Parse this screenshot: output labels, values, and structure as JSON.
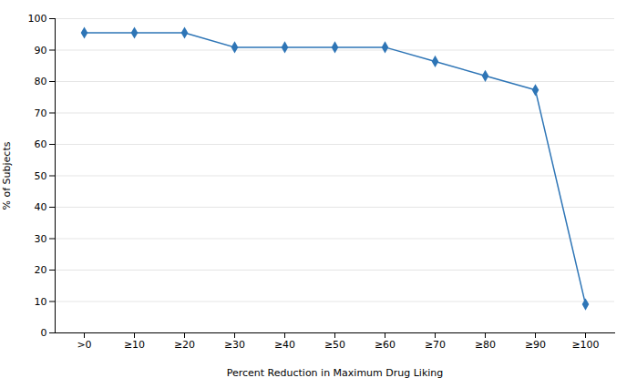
{
  "chart_data": {
    "type": "line",
    "categories": [
      ">0",
      "≥10",
      "≥20",
      "≥30",
      "≥40",
      "≥50",
      "≥60",
      "≥70",
      "≥80",
      "≥90",
      "≥100"
    ],
    "values": [
      95.5,
      95.5,
      95.5,
      90.9,
      90.9,
      90.9,
      90.9,
      86.4,
      81.8,
      77.3,
      9.1
    ],
    "color": "#2E75B6",
    "marker": "diamond",
    "xlabel": "Percent Reduction in Maximum Drug Liking",
    "ylabel": "% of Subjects",
    "ylim": [
      0,
      100
    ],
    "yticks": [
      0,
      10,
      20,
      30,
      40,
      50,
      60,
      70,
      80,
      90,
      100
    ],
    "grid": true
  }
}
